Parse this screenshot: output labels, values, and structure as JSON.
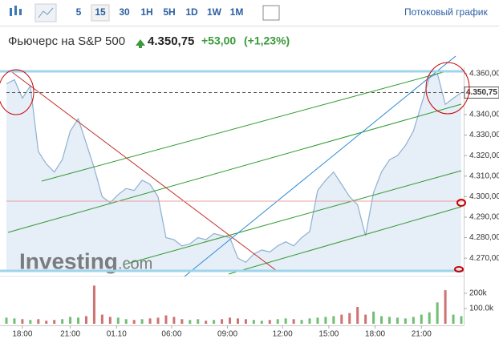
{
  "toolbar": {
    "intervals": [
      "5",
      "15",
      "30",
      "1H",
      "5H",
      "1D",
      "1W",
      "1M"
    ],
    "selected": "15",
    "stream": "Потоковый график"
  },
  "header": {
    "title": "Фьючерс на S&P 500",
    "price": "4.350,75",
    "change": "+53,00",
    "change_pct": "(+1,23%)"
  },
  "watermark": {
    "brand": "Investing",
    "domain": ".com"
  },
  "chart_data": {
    "type": "line",
    "area": true,
    "color": "#8fb0d0",
    "values": [
      4355,
      4357,
      4348,
      4354,
      4322,
      4316,
      4312,
      4318,
      4332,
      4338,
      4326,
      4314,
      4300,
      4297,
      4301,
      4304,
      4303,
      4308,
      4306,
      4300,
      4280,
      4279,
      4276,
      4277,
      4280,
      4279,
      4282,
      4281,
      4280,
      4270,
      4268,
      4272,
      4274,
      4273,
      4276,
      4278,
      4276,
      4280,
      4283,
      4303,
      4308,
      4312,
      4306,
      4300,
      4296,
      4281,
      4302,
      4312,
      4318,
      4320,
      4325,
      4332,
      4345,
      4358,
      4360,
      4345,
      4348,
      4350.75
    ],
    "volumes": [
      40,
      35,
      30,
      25,
      30,
      20,
      25,
      30,
      45,
      40,
      50,
      250,
      60,
      45,
      40,
      30,
      25,
      30,
      35,
      40,
      55,
      45,
      30,
      25,
      30,
      20,
      25,
      30,
      40,
      35,
      30,
      25,
      20,
      25,
      30,
      35,
      30,
      25,
      35,
      40,
      45,
      50,
      60,
      70,
      110,
      60,
      80,
      50,
      45,
      40,
      35,
      45,
      60,
      75,
      140,
      220,
      60,
      50
    ],
    "xlim": [
      0,
      57
    ],
    "xticks": [
      {
        "value": 2,
        "label": "18:00"
      },
      {
        "value": 8,
        "label": "21:00"
      },
      {
        "value": 13.8,
        "label": "01.10"
      },
      {
        "value": 20.7,
        "label": "06:00"
      },
      {
        "value": 27.7,
        "label": "09:00"
      },
      {
        "value": 34.6,
        "label": "12:00"
      },
      {
        "value": 40.4,
        "label": "15:00"
      },
      {
        "value": 46.2,
        "label": "18:00"
      },
      {
        "value": 52,
        "label": "21:00"
      }
    ],
    "ylim": [
      4263.8,
      4361.5
    ],
    "yticks": [
      {
        "value": 4360,
        "label": "4.360,00"
      },
      {
        "value": 4340,
        "label": "4.340,00"
      },
      {
        "value": 4330,
        "label": "4.330,00"
      },
      {
        "value": 4320,
        "label": "4.320,00"
      },
      {
        "value": 4310,
        "label": "4.310,00"
      },
      {
        "value": 4300,
        "label": "4.300,00"
      },
      {
        "value": 4290,
        "label": "4.290,00"
      },
      {
        "value": 4280,
        "label": "4.280,00"
      },
      {
        "value": 4270,
        "label": "4.270,00"
      }
    ],
    "y2lim": [
      0,
      252
    ],
    "y2ticks": [
      {
        "value": 200,
        "label": "200k"
      },
      {
        "value": 100,
        "label": "100.0k"
      }
    ],
    "up_color": "#4caf50",
    "down_color": "#c0504d"
  }
}
